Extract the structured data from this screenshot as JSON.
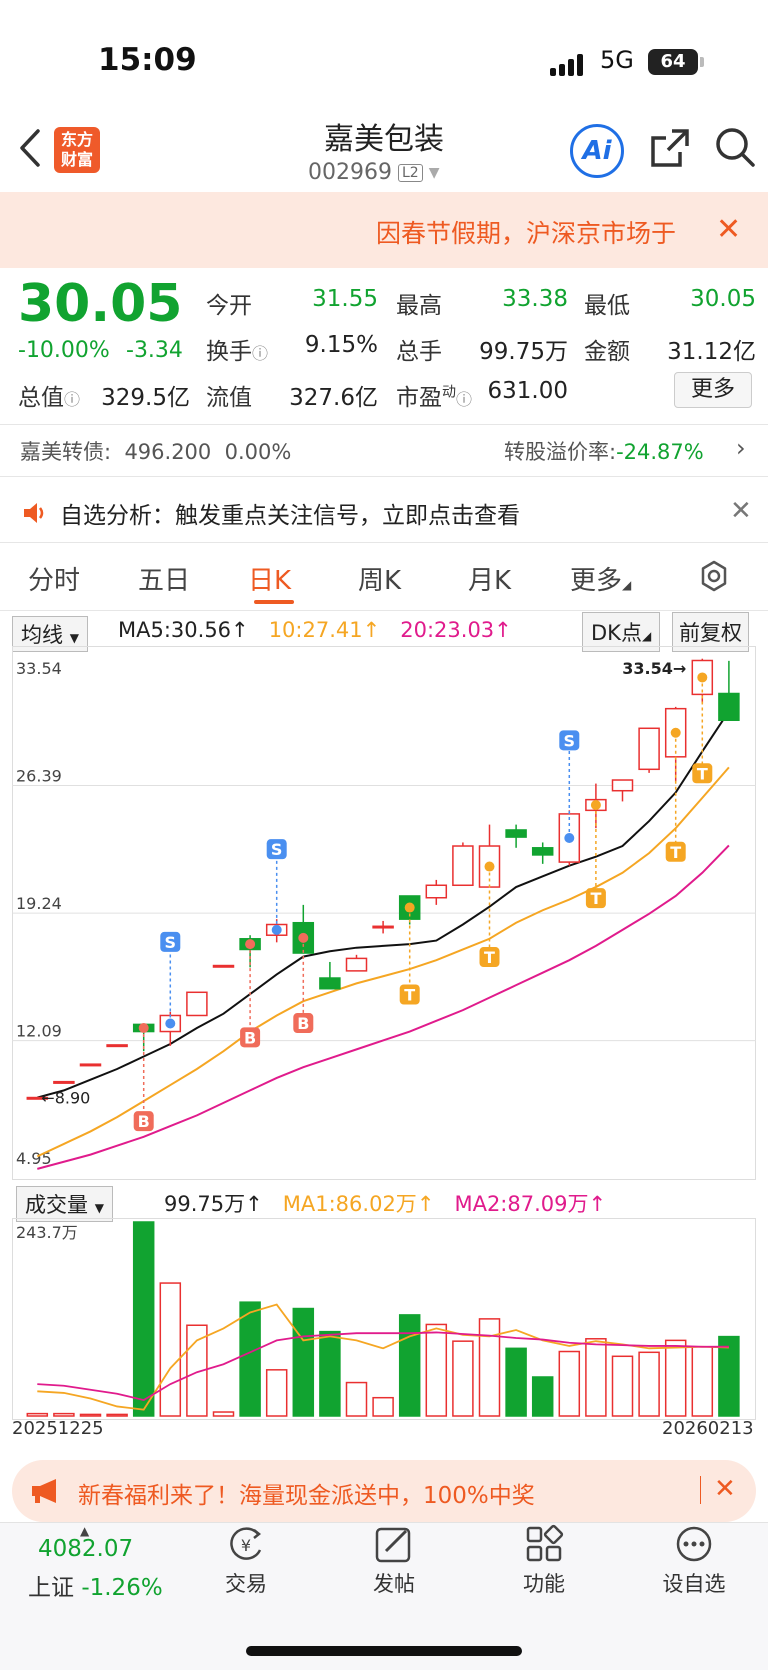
{
  "status": {
    "time": "15:09",
    "network": "5G",
    "battery": "64"
  },
  "header": {
    "logo_line1": "东方",
    "logo_line2": "财富",
    "name": "嘉美包装",
    "code": "002969",
    "level": "L2",
    "ai_label": "Ai"
  },
  "notice": {
    "text": "因春节假期，沪深京市场于"
  },
  "quote": {
    "price": "30.05",
    "change_pct": "-10.00%",
    "change_amt": "-3.34",
    "open_label": "今开",
    "open": "31.55",
    "high_label": "最高",
    "high": "33.38",
    "low_label": "最低",
    "low": "30.05",
    "turnover_label": "换手",
    "turnover": "9.15%",
    "volume_label": "总手",
    "volume": "99.75万",
    "amount_label": "金额",
    "amount": "31.12亿",
    "mktcap_label": "总值",
    "mktcap": "329.5亿",
    "float_label": "流值",
    "float": "327.6亿",
    "pe_label": "市盈",
    "pe_sup": "动",
    "pe": "631.00",
    "more": "更多"
  },
  "bond": {
    "name": "嘉美转债:",
    "price": "496.200",
    "pct": "0.00%",
    "premium_label": "转股溢价率:",
    "premium": "-24.87%"
  },
  "analysis": {
    "text": "自选分析：触发重点关注信号，立即点击查看"
  },
  "tabs": [
    "分时",
    "五日",
    "日K",
    "周K",
    "月K",
    "更多"
  ],
  "chart_header": {
    "indicator": "均线",
    "ma5": "MA5:30.56",
    "ma10": "10:27.41",
    "ma20": "20:23.03",
    "dk": "DK点",
    "adjust": "前复权"
  },
  "volume_header": {
    "indicator": "成交量",
    "vol": "99.75万",
    "ma1": "MA1:86.02万",
    "ma2": "MA2:87.09万"
  },
  "colors": {
    "up": "#e93030",
    "down": "#11a330",
    "ma5": "#111111",
    "ma10": "#f5a623",
    "ma20": "#e01b8c",
    "accent": "#ee5a22"
  },
  "chart_data": {
    "type": "candlestick",
    "y_ticks": [
      "33.54",
      "26.39",
      "19.24",
      "12.09",
      "4.95"
    ],
    "ylim": [
      4.95,
      33.54
    ],
    "vol_max_label": "243.7万",
    "dates": [
      "20251225",
      "20260213"
    ],
    "high_marker": "33.54",
    "low_marker": "8.90",
    "candles": [
      {
        "o": 8.9,
        "c": 8.9,
        "h": 8.9,
        "l": 8.9
      },
      {
        "o": 9.79,
        "c": 9.79,
        "h": 9.79,
        "l": 9.79
      },
      {
        "o": 10.77,
        "c": 10.77,
        "h": 10.77,
        "l": 10.77
      },
      {
        "o": 11.85,
        "c": 11.85,
        "h": 11.85,
        "l": 11.85
      },
      {
        "o": 13.0,
        "c": 12.6,
        "h": 13.0,
        "l": 11.5
      },
      {
        "o": 12.6,
        "c": 13.5,
        "h": 13.7,
        "l": 11.8
      },
      {
        "o": 13.5,
        "c": 14.8,
        "h": 14.8,
        "l": 13.5
      },
      {
        "o": 16.3,
        "c": 16.3,
        "h": 16.3,
        "l": 16.3
      },
      {
        "o": 17.8,
        "c": 17.2,
        "h": 18.0,
        "l": 16.2
      },
      {
        "o": 18.0,
        "c": 18.6,
        "h": 18.9,
        "l": 17.6
      },
      {
        "o": 18.7,
        "c": 17.0,
        "h": 19.7,
        "l": 17.0
      },
      {
        "o": 15.6,
        "c": 15.0,
        "h": 16.5,
        "l": 15.0
      },
      {
        "o": 16.0,
        "c": 16.7,
        "h": 16.9,
        "l": 16.0
      },
      {
        "o": 18.5,
        "c": 18.5,
        "h": 18.8,
        "l": 18.1
      },
      {
        "o": 20.2,
        "c": 18.9,
        "h": 20.2,
        "l": 18.6
      },
      {
        "o": 20.1,
        "c": 20.8,
        "h": 21.1,
        "l": 19.7
      },
      {
        "o": 20.8,
        "c": 23.0,
        "h": 23.2,
        "l": 20.8
      },
      {
        "o": 20.7,
        "c": 23.0,
        "h": 24.2,
        "l": 20.7
      },
      {
        "o": 23.9,
        "c": 23.5,
        "h": 24.2,
        "l": 22.9
      },
      {
        "o": 22.9,
        "c": 22.5,
        "h": 23.2,
        "l": 22.0
      },
      {
        "o": 22.1,
        "c": 24.8,
        "h": 25.0,
        "l": 21.9
      },
      {
        "o": 25.0,
        "c": 25.6,
        "h": 26.5,
        "l": 24.0
      },
      {
        "o": 26.1,
        "c": 26.7,
        "h": 26.7,
        "l": 25.5
      },
      {
        "o": 27.3,
        "c": 29.6,
        "h": 29.6,
        "l": 27.1
      },
      {
        "o": 28.0,
        "c": 30.7,
        "h": 30.8,
        "l": 26.6
      },
      {
        "o": 31.5,
        "c": 33.4,
        "h": 33.5,
        "l": 31.0
      },
      {
        "o": 31.55,
        "c": 30.05,
        "h": 33.38,
        "l": 30.05
      }
    ],
    "ma5": [
      8.9,
      9.3,
      9.9,
      10.5,
      11.2,
      11.9,
      12.8,
      13.6,
      14.7,
      15.8,
      16.8,
      17.1,
      17.3,
      17.4,
      17.5,
      17.7,
      18.6,
      19.6,
      20.7,
      21.3,
      21.9,
      22.4,
      23.0,
      24.4,
      26.0,
      28.3,
      30.56
    ],
    "ma10": [
      5.6,
      6.3,
      7.0,
      7.8,
      8.7,
      9.6,
      10.5,
      11.5,
      12.6,
      13.5,
      14.3,
      14.8,
      15.3,
      15.7,
      16.1,
      16.6,
      17.2,
      17.8,
      18.7,
      19.4,
      20.0,
      20.7,
      21.5,
      22.6,
      24.0,
      25.7,
      27.41
    ],
    "ma20": [
      4.9,
      5.3,
      5.7,
      6.2,
      6.7,
      7.3,
      7.9,
      8.6,
      9.3,
      10.0,
      10.6,
      11.1,
      11.6,
      12.1,
      12.6,
      13.2,
      13.8,
      14.5,
      15.2,
      15.9,
      16.6,
      17.4,
      18.3,
      19.2,
      20.2,
      21.5,
      23.03
    ],
    "volumes": [
      3,
      3,
      2,
      2,
      243.7,
      167,
      114,
      5,
      143,
      58,
      135,
      106,
      42,
      23,
      127,
      115,
      94,
      122,
      85,
      49,
      81,
      97,
      75,
      80,
      95,
      87,
      99.75
    ],
    "vol_ma1": [
      31,
      29,
      22,
      12,
      8,
      60,
      95,
      110,
      130,
      140,
      95,
      100,
      95,
      85,
      100,
      110,
      102,
      100,
      108,
      95,
      88,
      94,
      90,
      85,
      86,
      87,
      86.02
    ],
    "vol_ma2": [
      40,
      38,
      33,
      28,
      20,
      40,
      55,
      65,
      80,
      95,
      100,
      102,
      104,
      104,
      104,
      105,
      103,
      101,
      98,
      96,
      92,
      90,
      89,
      88,
      88,
      87,
      87.09
    ],
    "signals": [
      {
        "i": 4,
        "type": "B",
        "side": "below"
      },
      {
        "i": 5,
        "type": "S",
        "side": "above"
      },
      {
        "i": 8,
        "type": "B",
        "side": "below"
      },
      {
        "i": 9,
        "type": "S",
        "side": "above"
      },
      {
        "i": 10,
        "type": "B",
        "side": "below"
      },
      {
        "i": 14,
        "type": "T",
        "side": "below"
      },
      {
        "i": 17,
        "type": "T",
        "side": "below"
      },
      {
        "i": 20,
        "type": "S",
        "side": "above"
      },
      {
        "i": 21,
        "type": "T",
        "side": "below"
      },
      {
        "i": 24,
        "type": "T",
        "side": "below"
      },
      {
        "i": 25,
        "type": "T",
        "side": "below"
      }
    ]
  },
  "ad": {
    "text": "新春福利来了！海量现金派送中，100%中奖"
  },
  "bottom_nav": {
    "index_value": "4082.07",
    "index_name": "上证",
    "index_change": "-1.26%",
    "items": [
      "交易",
      "发帖",
      "功能",
      "设自选"
    ]
  }
}
